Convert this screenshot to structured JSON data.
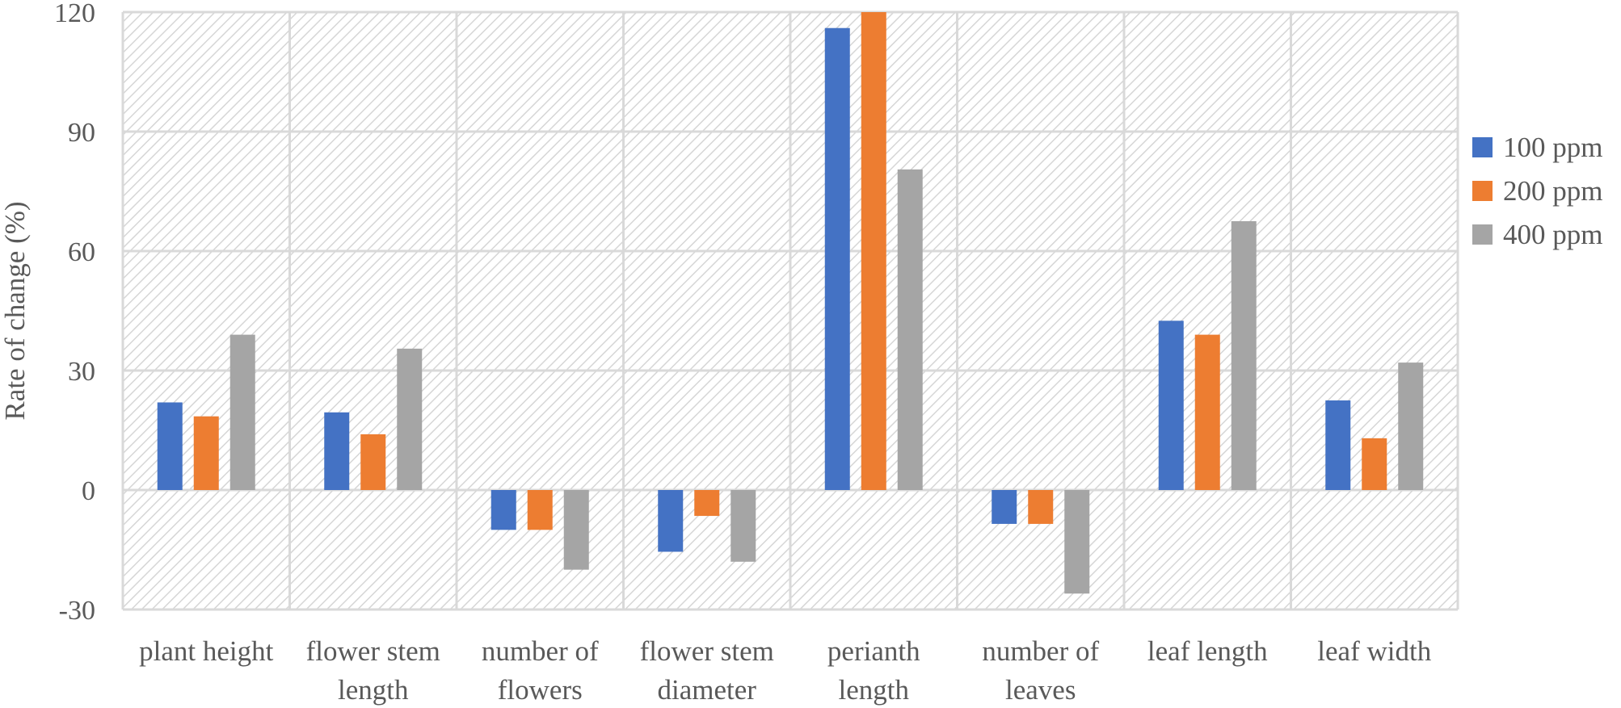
{
  "chart_data": {
    "type": "bar",
    "title": "",
    "xlabel": "",
    "ylabel": "Rate of change (%)",
    "ylim": [
      -30,
      120
    ],
    "yticks": [
      -30,
      0,
      30,
      60,
      90,
      120
    ],
    "grid": true,
    "legend_position": "right",
    "categories": [
      [
        "plant height"
      ],
      [
        "flower stem",
        "length"
      ],
      [
        "number of",
        "flowers"
      ],
      [
        "flower stem",
        "diameter"
      ],
      [
        "perianth",
        "length"
      ],
      [
        "number of",
        "leaves"
      ],
      [
        "leaf length"
      ],
      [
        "leaf width"
      ]
    ],
    "series": [
      {
        "name": "100 ppm",
        "color": "#4472C4",
        "values": [
          22,
          19.5,
          -10,
          -15.5,
          116,
          -8.5,
          42.5,
          22.5
        ]
      },
      {
        "name": "200 ppm",
        "color": "#ED7D31",
        "values": [
          18.5,
          14,
          -10,
          -6.5,
          120,
          -8.5,
          39,
          13
        ]
      },
      {
        "name": "400 ppm",
        "color": "#A5A5A5",
        "values": [
          39,
          35.5,
          -20,
          -18,
          80.5,
          -26,
          67.5,
          32
        ]
      }
    ]
  }
}
